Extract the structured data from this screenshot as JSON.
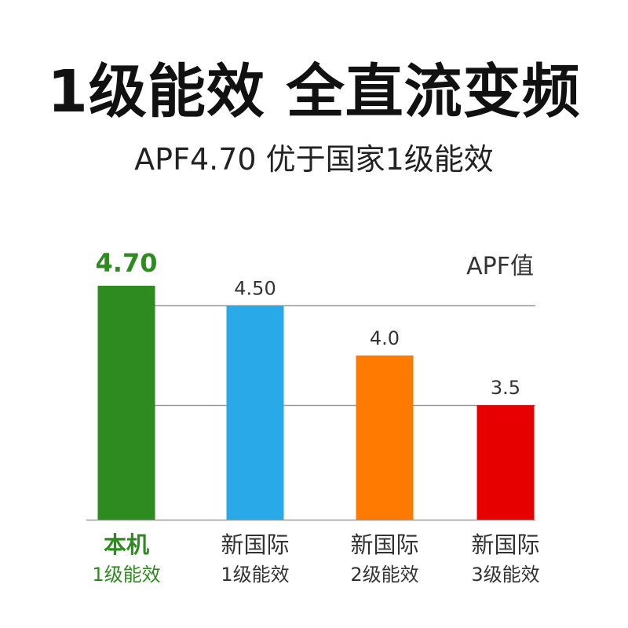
{
  "title": "1级能效 全直流变频",
  "subtitle": "APF4.70  优于国家1级能效",
  "chart_data": {
    "type": "bar",
    "unit_label": "APF值",
    "categories": [
      {
        "name": "本机",
        "grade": "1级能效"
      },
      {
        "name": "新国际",
        "grade": "1级能效"
      },
      {
        "name": "新国际",
        "grade": "2级能效"
      },
      {
        "name": "新国际",
        "grade": "3级能效"
      }
    ],
    "values": [
      4.7,
      4.5,
      4.0,
      3.5
    ],
    "value_labels": [
      "4.70",
      "4.50",
      "4.0",
      "3.5"
    ],
    "colors": [
      "#2e8b1f",
      "#29a9e8",
      "#ff7a00",
      "#e60000"
    ],
    "label_colors": [
      "#2e8b1f",
      "#333333",
      "#333333",
      "#333333"
    ],
    "highlight_index": 0,
    "gridlines": [
      3.5,
      4.5
    ],
    "ylim": [
      2.35,
      4.9
    ],
    "grid": true
  }
}
